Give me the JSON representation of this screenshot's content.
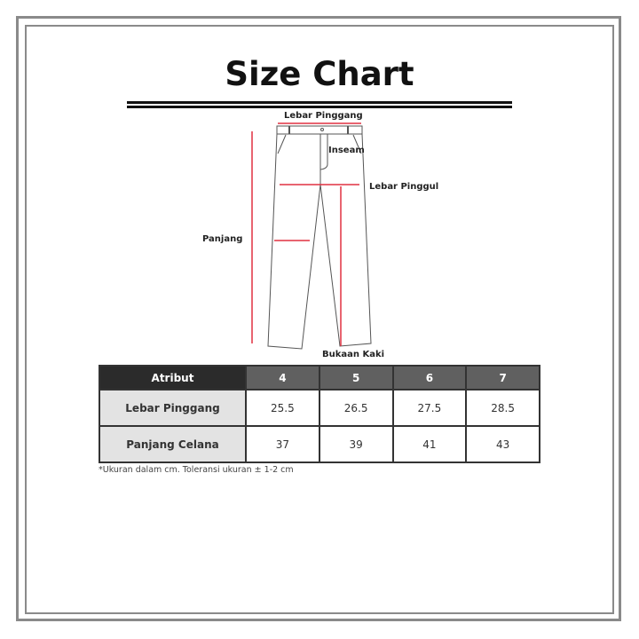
{
  "title": "Size Chart",
  "diagram": {
    "labels": {
      "waist": "Lebar Pinggang",
      "inseam": "Inseam",
      "hip": "Lebar Pinggul",
      "length": "Panjang",
      "leg_opening": "Bukaan Kaki"
    },
    "measure_color": "#e03040"
  },
  "table": {
    "header": [
      "Atribut",
      "4",
      "5",
      "6",
      "7"
    ],
    "rows": [
      {
        "label": "Lebar Pinggang",
        "values": [
          "25.5",
          "26.5",
          "27.5",
          "28.5"
        ]
      },
      {
        "label": "Panjang Celana",
        "values": [
          "37",
          "39",
          "41",
          "43"
        ]
      }
    ]
  },
  "note": "*Ukuran dalam cm. Toleransi ukuran ± 1-2 cm"
}
